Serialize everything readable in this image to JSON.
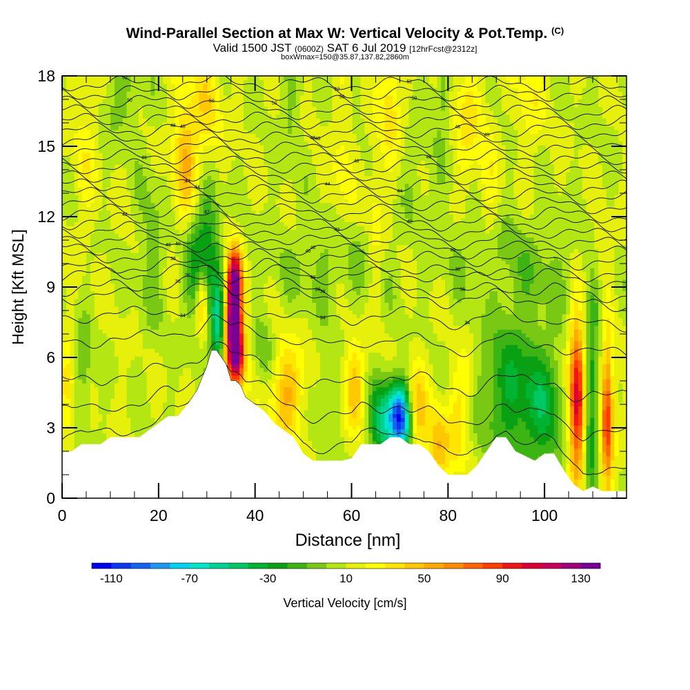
{
  "title": {
    "main": "Wind-Parallel Section at Max W: Vertical Velocity & Pot.Temp.",
    "main_suffix": "(C)",
    "line2_a": "Valid 1500 JST",
    "line2_b": "(0600Z)",
    "line2_c": "SAT 6 Jul 2019",
    "line2_d": "[12hrFcst@2312z]",
    "line3": "boxWmax=150@35.87,137.82,2860m"
  },
  "chart_data": {
    "type": "heatmap",
    "xlabel": "Distance [nm]",
    "ylabel": "Height [Kft MSL]",
    "xlim": [
      0,
      117
    ],
    "ylim": [
      0,
      18
    ],
    "x_ticks": [
      0,
      20,
      40,
      60,
      80,
      100
    ],
    "y_ticks": [
      0,
      3,
      6,
      9,
      12,
      15,
      18
    ],
    "colorbar": {
      "label": "Vertical Velocity [cm/s]",
      "tick_labels": [
        "-110",
        "-70",
        "-30",
        "10",
        "50",
        "90",
        "130"
      ],
      "tick_values": [
        -110,
        -70,
        -30,
        10,
        50,
        90,
        130
      ],
      "range": [
        -120,
        140
      ],
      "colors": [
        "#0000f0",
        "#0a37f0",
        "#1464f0",
        "#1e96f0",
        "#00d2f0",
        "#00e6c8",
        "#00d296",
        "#00c864",
        "#00b432",
        "#0aa014",
        "#3cb414",
        "#78c814",
        "#b4e614",
        "#e6f00a",
        "#ffff00",
        "#ffe600",
        "#ffc800",
        "#ffaa00",
        "#ff8c00",
        "#ff6400",
        "#ff3c00",
        "#f01414",
        "#dc0032",
        "#c8005a",
        "#a00078",
        "#780096"
      ]
    },
    "terrain": [
      [
        0,
        2.0
      ],
      [
        2,
        2.0
      ],
      [
        4,
        2.3
      ],
      [
        6,
        2.3
      ],
      [
        8,
        2.3
      ],
      [
        10,
        2.6
      ],
      [
        12,
        2.6
      ],
      [
        14,
        2.6
      ],
      [
        16,
        2.6
      ],
      [
        18,
        2.9
      ],
      [
        20,
        3.2
      ],
      [
        22,
        3.5
      ],
      [
        24,
        3.5
      ],
      [
        26,
        4.0
      ],
      [
        28,
        4.6
      ],
      [
        30,
        5.6
      ],
      [
        31,
        6.3
      ],
      [
        32,
        6.3
      ],
      [
        33,
        6.0
      ],
      [
        34,
        5.7
      ],
      [
        35,
        5.0
      ],
      [
        36,
        5.0
      ],
      [
        37,
        4.8
      ],
      [
        38,
        4.3
      ],
      [
        40,
        4.0
      ],
      [
        42,
        3.7
      ],
      [
        44,
        3.2
      ],
      [
        46,
        2.9
      ],
      [
        48,
        2.6
      ],
      [
        50,
        1.9
      ],
      [
        52,
        1.6
      ],
      [
        54,
        1.6
      ],
      [
        56,
        1.6
      ],
      [
        58,
        1.6
      ],
      [
        60,
        1.7
      ],
      [
        61,
        2.0
      ],
      [
        62,
        2.3
      ],
      [
        64,
        2.3
      ],
      [
        66,
        2.3
      ],
      [
        68,
        2.6
      ],
      [
        70,
        2.6
      ],
      [
        72,
        2.3
      ],
      [
        74,
        2.3
      ],
      [
        76,
        2.0
      ],
      [
        78,
        1.4
      ],
      [
        80,
        1.0
      ],
      [
        82,
        1.0
      ],
      [
        84,
        1.0
      ],
      [
        86,
        1.4
      ],
      [
        88,
        2.0
      ],
      [
        90,
        2.6
      ],
      [
        92,
        2.6
      ],
      [
        94,
        2.0
      ],
      [
        96,
        1.8
      ],
      [
        98,
        1.6
      ],
      [
        100,
        1.9
      ],
      [
        102,
        1.9
      ],
      [
        104,
        1.2
      ],
      [
        106,
        0.6
      ],
      [
        108,
        0.3
      ],
      [
        110,
        0.5
      ],
      [
        112,
        0.3
      ],
      [
        114,
        0.3
      ],
      [
        117,
        0.3
      ]
    ],
    "features": [
      {
        "x": 35.5,
        "z": 7.5,
        "sx": 1.3,
        "sz": 1.6,
        "w": 138
      },
      {
        "x": 35.8,
        "z": 9.4,
        "sx": 1.0,
        "sz": 0.9,
        "w": 70
      },
      {
        "x": 36.5,
        "z": 6.0,
        "sx": 1.2,
        "sz": 0.9,
        "w": 60
      },
      {
        "x": 32.3,
        "z": 7.3,
        "sx": 1.1,
        "sz": 1.4,
        "w": -65
      },
      {
        "x": 30.5,
        "z": 11.0,
        "sx": 1.8,
        "sz": 2.2,
        "w": -32
      },
      {
        "x": 27.5,
        "z": 10.0,
        "sx": 1.8,
        "sz": 1.7,
        "w": -28
      },
      {
        "x": 25.5,
        "z": 14.5,
        "sx": 1.8,
        "sz": 2.0,
        "w": 38
      },
      {
        "x": 30.0,
        "z": 16.5,
        "sx": 2.2,
        "sz": 2.2,
        "w": 25
      },
      {
        "x": 29.0,
        "z": 8.4,
        "sx": 0.8,
        "sz": 1.0,
        "w": 40
      },
      {
        "x": 18.5,
        "z": 10.5,
        "sx": 2.0,
        "sz": 2.5,
        "w": -15
      },
      {
        "x": 1.0,
        "z": 4.5,
        "sx": 1.0,
        "sz": 1.5,
        "w": 28
      },
      {
        "x": 4.5,
        "z": 5.5,
        "sx": 1.2,
        "sz": 1.5,
        "w": -20
      },
      {
        "x": 46.5,
        "z": 4.5,
        "sx": 2.5,
        "sz": 1.5,
        "w": 40
      },
      {
        "x": 42.0,
        "z": 6.3,
        "sx": 1.5,
        "sz": 1.1,
        "w": -18
      },
      {
        "x": 54.5,
        "z": 4.4,
        "sx": 1.4,
        "sz": 1.3,
        "w": -15
      },
      {
        "x": 60.5,
        "z": 4.8,
        "sx": 1.5,
        "sz": 1.4,
        "w": 35
      },
      {
        "x": 69.8,
        "z": 3.6,
        "sx": 1.6,
        "sz": 1.0,
        "w": -92
      },
      {
        "x": 66.5,
        "z": 3.2,
        "sx": 2.0,
        "sz": 1.2,
        "w": -55
      },
      {
        "x": 71.0,
        "z": 2.8,
        "sx": 1.2,
        "sz": 1.0,
        "w": -30
      },
      {
        "x": 73.5,
        "z": 3.8,
        "sx": 1.5,
        "sz": 1.5,
        "w": 35
      },
      {
        "x": 78.0,
        "z": 2.3,
        "sx": 1.6,
        "sz": 1.2,
        "w": 38
      },
      {
        "x": 82.0,
        "z": 2.8,
        "sx": 1.6,
        "sz": 1.6,
        "w": 22
      },
      {
        "x": 84.0,
        "z": 5.0,
        "sx": 1.6,
        "sz": 1.2,
        "w": 18
      },
      {
        "x": 93.0,
        "z": 4.6,
        "sx": 5.0,
        "sz": 2.0,
        "w": -38
      },
      {
        "x": 100.0,
        "z": 3.5,
        "sx": 3.0,
        "sz": 2.0,
        "w": -30
      },
      {
        "x": 106.8,
        "z": 4.2,
        "sx": 1.2,
        "sz": 2.3,
        "w": 105
      },
      {
        "x": 109.5,
        "z": 4.0,
        "sx": 1.2,
        "sz": 2.5,
        "w": -45
      },
      {
        "x": 113.0,
        "z": 3.5,
        "sx": 0.9,
        "sz": 2.2,
        "w": 80
      },
      {
        "x": 110.8,
        "z": 8.5,
        "sx": 1.0,
        "sz": 1.0,
        "w": -18
      },
      {
        "x": 111.5,
        "z": 10.0,
        "sx": 1.2,
        "sz": 1.2,
        "w": 15
      },
      {
        "x": 96.0,
        "z": 9.8,
        "sx": 8.0,
        "sz": 1.6,
        "w": -14
      },
      {
        "x": 55.0,
        "z": 9.8,
        "sx": 9.0,
        "sz": 1.4,
        "w": -12
      },
      {
        "x": 68.0,
        "z": 16.8,
        "sx": 1.4,
        "sz": 1.8,
        "w": 28
      },
      {
        "x": 65.0,
        "z": 12.0,
        "sx": 1.2,
        "sz": 2.5,
        "w": 14
      },
      {
        "x": 58.0,
        "z": 14.0,
        "sx": 1.6,
        "sz": 2.0,
        "w": 15
      },
      {
        "x": 84.0,
        "z": 16.0,
        "sx": 2.0,
        "sz": 2.0,
        "w": 24
      },
      {
        "x": 88.5,
        "z": 12.5,
        "sx": 1.6,
        "sz": 3.0,
        "w": 14
      },
      {
        "x": 97.0,
        "z": 17.0,
        "sx": 2.0,
        "sz": 1.5,
        "w": 18
      },
      {
        "x": 5.0,
        "z": 15.0,
        "sx": 2.0,
        "sz": 2.5,
        "w": 14
      },
      {
        "x": 12.0,
        "z": 17.0,
        "sx": 3.0,
        "sz": 1.3,
        "w": -14
      },
      {
        "x": 47.5,
        "z": 16.5,
        "sx": 1.5,
        "sz": 2.0,
        "w": -12
      },
      {
        "x": 79.0,
        "z": 17.5,
        "sx": 1.0,
        "sz": 1.0,
        "w": -22
      },
      {
        "x": 86.0,
        "z": 11.0,
        "sx": 4.0,
        "sz": 1.2,
        "w": -8
      },
      {
        "x": 76.0,
        "z": 13.5,
        "sx": 4.0,
        "sz": 2.0,
        "w": -8
      }
    ],
    "theta_levels": [
      {
        "z": 1.0,
        "label": ""
      },
      {
        "z": 2.6,
        "label": ""
      },
      {
        "z": 4.2,
        "label": ""
      },
      {
        "z": 6.1,
        "label": ""
      },
      {
        "z": 7.3,
        "label": "34"
      },
      {
        "z": 8.2,
        "label": ""
      },
      {
        "z": 8.6,
        "label": "36"
      },
      {
        "z": 9.2,
        "label": ""
      },
      {
        "z": 9.5,
        "label": "38"
      },
      {
        "z": 10.0,
        "label": ""
      },
      {
        "z": 10.4,
        "label": "40"
      },
      {
        "z": 10.8,
        "label": ""
      },
      {
        "z": 11.2,
        "label": ""
      },
      {
        "z": 11.6,
        "label": "42"
      },
      {
        "z": 12.0,
        "label": ""
      },
      {
        "z": 12.4,
        "label": ""
      },
      {
        "z": 12.8,
        "label": ""
      },
      {
        "z": 13.2,
        "label": "44"
      },
      {
        "z": 13.6,
        "label": ""
      },
      {
        "z": 14.0,
        "label": ""
      },
      {
        "z": 14.4,
        "label": "46"
      },
      {
        "z": 14.8,
        "label": ""
      },
      {
        "z": 15.2,
        "label": ""
      },
      {
        "z": 15.6,
        "label": "48"
      },
      {
        "z": 16.0,
        "label": ""
      },
      {
        "z": 16.4,
        "label": ""
      },
      {
        "z": 16.8,
        "label": "50"
      },
      {
        "z": 17.2,
        "label": ""
      },
      {
        "z": 17.6,
        "label": "52"
      }
    ]
  }
}
